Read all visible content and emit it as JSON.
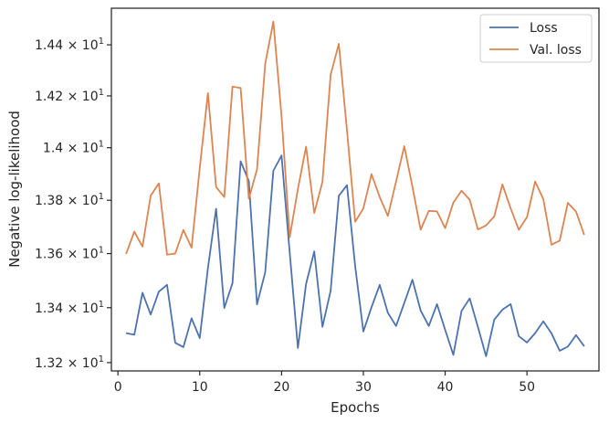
{
  "chart_data": {
    "type": "line",
    "xlabel": "Epochs",
    "ylabel": "Negative log-likelihood",
    "y_scale": "log",
    "xlim": [
      -0.8,
      58.8
    ],
    "ylim": [
      13.17,
      14.545
    ],
    "x_ticks": [
      {
        "value": 0,
        "label": "0"
      },
      {
        "value": 10,
        "label": "10"
      },
      {
        "value": 20,
        "label": "20"
      },
      {
        "value": 30,
        "label": "30"
      },
      {
        "value": 40,
        "label": "40"
      },
      {
        "value": 50,
        "label": "50"
      }
    ],
    "y_ticks": [
      {
        "value": 13.2,
        "mantissa": "1.32",
        "times": "× 10",
        "exp": "1"
      },
      {
        "value": 13.4,
        "mantissa": "1.34",
        "times": "× 10",
        "exp": "1"
      },
      {
        "value": 13.6,
        "mantissa": "1.36",
        "times": "× 10",
        "exp": "1"
      },
      {
        "value": 13.8,
        "mantissa": "1.38",
        "times": "× 10",
        "exp": "1"
      },
      {
        "value": 14.0,
        "mantissa": "1.4",
        "times": "× 10",
        "exp": "1"
      },
      {
        "value": 14.2,
        "mantissa": "1.42",
        "times": "× 10",
        "exp": "1"
      },
      {
        "value": 14.4,
        "mantissa": "1.44",
        "times": "× 10",
        "exp": "1"
      }
    ],
    "legend_position": "top-right",
    "grid": false,
    "x": [
      1,
      2,
      3,
      4,
      5,
      6,
      7,
      8,
      9,
      10,
      11,
      12,
      13,
      14,
      15,
      16,
      17,
      18,
      19,
      20,
      21,
      22,
      23,
      24,
      25,
      26,
      27,
      28,
      29,
      30,
      31,
      32,
      33,
      34,
      35,
      36,
      37,
      38,
      39,
      40,
      41,
      42,
      43,
      44,
      45,
      46,
      47,
      48,
      49,
      50,
      51,
      52,
      53,
      54,
      55,
      56,
      57
    ],
    "series": [
      {
        "name": "Loss",
        "color": "#4c72b0",
        "values": [
          13.307,
          13.301,
          13.455,
          13.375,
          13.459,
          13.484,
          13.272,
          13.256,
          13.361,
          13.289,
          13.546,
          13.768,
          13.399,
          13.49,
          13.948,
          13.873,
          13.412,
          13.53,
          13.912,
          13.97,
          13.603,
          13.253,
          13.488,
          13.608,
          13.33,
          13.462,
          13.817,
          13.857,
          13.553,
          13.313,
          13.402,
          13.484,
          13.381,
          13.333,
          13.417,
          13.503,
          13.39,
          13.333,
          13.413,
          13.319,
          13.228,
          13.388,
          13.434,
          13.33,
          13.223,
          13.356,
          13.393,
          13.413,
          13.296,
          13.273,
          13.307,
          13.35,
          13.306,
          13.243,
          13.258,
          13.3,
          13.259
        ]
      },
      {
        "name": "Val. loss",
        "color": "#dd8452",
        "values": [
          13.599,
          13.682,
          13.626,
          13.817,
          13.864,
          13.596,
          13.6,
          13.688,
          13.622,
          13.922,
          14.211,
          13.85,
          13.812,
          14.236,
          14.231,
          13.806,
          13.917,
          14.325,
          14.492,
          14.121,
          13.661,
          13.843,
          14.004,
          13.752,
          13.87,
          14.282,
          14.404,
          14.066,
          13.719,
          13.769,
          13.899,
          13.812,
          13.741,
          13.871,
          14.006,
          13.851,
          13.689,
          13.76,
          13.758,
          13.695,
          13.791,
          13.836,
          13.802,
          13.69,
          13.705,
          13.739,
          13.86,
          13.77,
          13.689,
          13.736,
          13.871,
          13.804,
          13.633,
          13.648,
          13.79,
          13.757,
          13.67
        ]
      }
    ]
  }
}
